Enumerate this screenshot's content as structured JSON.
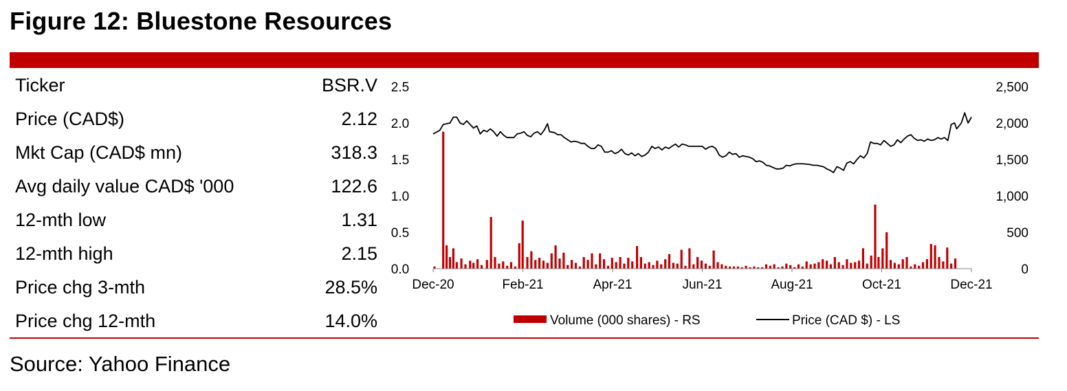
{
  "figure": {
    "title": "Figure 12: Bluestone Resources",
    "source": "Source: Yahoo Finance"
  },
  "stats": [
    {
      "label": "Ticker",
      "value": "BSR.V"
    },
    {
      "label": "Price (CAD$)",
      "value": "2.12"
    },
    {
      "label": "Mkt Cap (CAD$ mn)",
      "value": "318.3"
    },
    {
      "label": "Avg daily value CAD$ '000",
      "value": "122.6"
    },
    {
      "label": "12-mth low",
      "value": "1.31"
    },
    {
      "label": "12-mth high",
      "value": "2.15"
    },
    {
      "label": "Price chg 3-mth",
      "value": "28.5%"
    },
    {
      "label": "Price chg 12-mth",
      "value": "14.0%"
    }
  ],
  "colors": {
    "accent": "#c00000",
    "price_line": "#000000",
    "volume_bars": "#c00000"
  },
  "chart_data": {
    "type": "bar+line",
    "x_tick_labels": [
      "Dec-20",
      "Feb-21",
      "Apr-21",
      "Jun-21",
      "Aug-21",
      "Oct-21",
      "Dec-21"
    ],
    "left_axis": {
      "ticks": [
        "0.0",
        "0.5",
        "1.0",
        "1.5",
        "2.0",
        "2.5"
      ],
      "ylim": [
        0,
        2.5
      ]
    },
    "right_axis": {
      "ticks": [
        "0",
        "500",
        "1,000",
        "1,500",
        "2,000",
        "2,500"
      ],
      "ylim": [
        0,
        2500
      ]
    },
    "series": [
      {
        "name": "Volume (000 shares) - RS",
        "type": "bar",
        "axis": "right",
        "bars": [
          [
            0.2,
            30
          ],
          [
            1.5,
            1880
          ],
          [
            2.0,
            320
          ],
          [
            2.5,
            160
          ],
          [
            3.0,
            280
          ],
          [
            3.5,
            90
          ],
          [
            4.2,
            140
          ],
          [
            4.8,
            60
          ],
          [
            5.5,
            110
          ],
          [
            6.0,
            80
          ],
          [
            6.6,
            130
          ],
          [
            7.2,
            50
          ],
          [
            8.0,
            120
          ],
          [
            8.6,
            710
          ],
          [
            9.2,
            160
          ],
          [
            9.8,
            70
          ],
          [
            10.4,
            100
          ],
          [
            11.0,
            40
          ],
          [
            11.6,
            90
          ],
          [
            12.2,
            30
          ],
          [
            12.8,
            350
          ],
          [
            13.3,
            660
          ],
          [
            14.0,
            160
          ],
          [
            14.6,
            240
          ],
          [
            15.2,
            120
          ],
          [
            15.8,
            150
          ],
          [
            16.4,
            110
          ],
          [
            17.0,
            80
          ],
          [
            17.6,
            210
          ],
          [
            18.2,
            320
          ],
          [
            18.8,
            140
          ],
          [
            19.4,
            220
          ],
          [
            20.0,
            50
          ],
          [
            20.6,
            120
          ],
          [
            21.2,
            80
          ],
          [
            21.8,
            30
          ],
          [
            22.4,
            160
          ],
          [
            23.0,
            120
          ],
          [
            23.6,
            210
          ],
          [
            24.2,
            60
          ],
          [
            24.8,
            210
          ],
          [
            25.4,
            130
          ],
          [
            26.0,
            40
          ],
          [
            26.6,
            150
          ],
          [
            27.2,
            90
          ],
          [
            27.8,
            160
          ],
          [
            28.4,
            70
          ],
          [
            29.0,
            150
          ],
          [
            29.6,
            100
          ],
          [
            30.3,
            310
          ],
          [
            30.9,
            160
          ],
          [
            31.5,
            70
          ],
          [
            32.1,
            90
          ],
          [
            32.7,
            50
          ],
          [
            33.3,
            110
          ],
          [
            33.9,
            60
          ],
          [
            34.5,
            130
          ],
          [
            35.1,
            200
          ],
          [
            35.7,
            80
          ],
          [
            36.3,
            70
          ],
          [
            36.9,
            260
          ],
          [
            37.5,
            40
          ],
          [
            38.1,
            280
          ],
          [
            38.7,
            60
          ],
          [
            39.3,
            160
          ],
          [
            39.9,
            110
          ],
          [
            40.5,
            70
          ],
          [
            41.1,
            40
          ],
          [
            41.7,
            250
          ],
          [
            42.3,
            90
          ],
          [
            42.9,
            60
          ],
          [
            43.5,
            40
          ],
          [
            44.1,
            30
          ],
          [
            44.7,
            30
          ],
          [
            45.3,
            30
          ],
          [
            45.9,
            20
          ],
          [
            46.5,
            40
          ],
          [
            47.1,
            20
          ],
          [
            47.7,
            30
          ],
          [
            48.3,
            20
          ],
          [
            48.9,
            20
          ],
          [
            49.5,
            60
          ],
          [
            50.1,
            40
          ],
          [
            50.7,
            60
          ],
          [
            51.3,
            20
          ],
          [
            51.9,
            30
          ],
          [
            52.5,
            70
          ],
          [
            53.1,
            50
          ],
          [
            53.7,
            20
          ],
          [
            54.3,
            60
          ],
          [
            54.9,
            30
          ],
          [
            55.5,
            100
          ],
          [
            56.1,
            60
          ],
          [
            56.7,
            70
          ],
          [
            57.3,
            90
          ],
          [
            57.9,
            130
          ],
          [
            58.5,
            110
          ],
          [
            59.1,
            60
          ],
          [
            59.7,
            160
          ],
          [
            60.3,
            90
          ],
          [
            60.9,
            50
          ],
          [
            61.5,
            130
          ],
          [
            62.1,
            80
          ],
          [
            62.7,
            90
          ],
          [
            63.3,
            110
          ],
          [
            63.9,
            280
          ],
          [
            64.5,
            70
          ],
          [
            65.1,
            180
          ],
          [
            65.7,
            880
          ],
          [
            66.2,
            160
          ],
          [
            66.8,
            280
          ],
          [
            67.4,
            500
          ],
          [
            68.0,
            120
          ],
          [
            68.6,
            80
          ],
          [
            69.2,
            60
          ],
          [
            69.8,
            130
          ],
          [
            70.4,
            160
          ],
          [
            71.0,
            30
          ],
          [
            71.6,
            60
          ],
          [
            72.2,
            40
          ],
          [
            72.8,
            90
          ],
          [
            73.4,
            130
          ],
          [
            74.0,
            340
          ],
          [
            74.6,
            320
          ],
          [
            75.2,
            160
          ],
          [
            75.8,
            100
          ],
          [
            76.4,
            290
          ],
          [
            77.0,
            70
          ],
          [
            77.6,
            140
          ]
        ]
      },
      {
        "name": "Price (CAD $) - LS",
        "type": "line",
        "axis": "left",
        "points": [
          [
            0.0,
            1.85
          ],
          [
            1.0,
            1.9
          ],
          [
            1.5,
            1.98
          ],
          [
            2.5,
            2.0
          ],
          [
            3.0,
            2.08
          ],
          [
            3.5,
            2.08
          ],
          [
            4.0,
            2.0
          ],
          [
            4.5,
            1.98
          ],
          [
            5.0,
            2.03
          ],
          [
            5.5,
            1.98
          ],
          [
            6.0,
            1.93
          ],
          [
            6.5,
            1.96
          ],
          [
            7.0,
            1.85
          ],
          [
            7.5,
            1.9
          ],
          [
            8.0,
            1.88
          ],
          [
            8.5,
            1.92
          ],
          [
            9.0,
            1.88
          ],
          [
            9.5,
            1.82
          ],
          [
            10.0,
            1.88
          ],
          [
            10.5,
            1.83
          ],
          [
            11.0,
            1.8
          ],
          [
            12.0,
            1.8
          ],
          [
            12.5,
            1.85
          ],
          [
            13.0,
            1.86
          ],
          [
            13.5,
            1.88
          ],
          [
            14.0,
            1.83
          ],
          [
            14.5,
            1.81
          ],
          [
            15.0,
            1.86
          ],
          [
            15.5,
            1.88
          ],
          [
            16.0,
            1.84
          ],
          [
            16.5,
            1.9
          ],
          [
            17.0,
            1.99
          ],
          [
            17.3,
            1.88
          ],
          [
            18.0,
            1.87
          ],
          [
            18.5,
            1.84
          ],
          [
            19.0,
            1.84
          ],
          [
            19.5,
            1.8
          ],
          [
            20.0,
            1.77
          ],
          [
            20.5,
            1.74
          ],
          [
            21.0,
            1.75
          ],
          [
            21.5,
            1.74
          ],
          [
            22.0,
            1.72
          ],
          [
            22.5,
            1.72
          ],
          [
            23.0,
            1.68
          ],
          [
            23.5,
            1.65
          ],
          [
            24.0,
            1.65
          ],
          [
            24.5,
            1.7
          ],
          [
            25.0,
            1.68
          ],
          [
            25.5,
            1.6
          ],
          [
            26.0,
            1.6
          ],
          [
            26.5,
            1.62
          ],
          [
            27.0,
            1.58
          ],
          [
            27.5,
            1.6
          ],
          [
            28.0,
            1.64
          ],
          [
            28.5,
            1.58
          ],
          [
            29.0,
            1.56
          ],
          [
            29.5,
            1.59
          ],
          [
            30.0,
            1.55
          ],
          [
            30.5,
            1.58
          ],
          [
            31.0,
            1.54
          ],
          [
            31.5,
            1.56
          ],
          [
            32.0,
            1.6
          ],
          [
            32.5,
            1.68
          ],
          [
            33.0,
            1.65
          ],
          [
            33.5,
            1.67
          ],
          [
            34.0,
            1.63
          ],
          [
            34.5,
            1.67
          ],
          [
            35.0,
            1.65
          ],
          [
            35.5,
            1.68
          ],
          [
            36.0,
            1.71
          ],
          [
            36.5,
            1.67
          ],
          [
            37.0,
            1.71
          ],
          [
            37.5,
            1.7
          ],
          [
            38.0,
            1.68
          ],
          [
            38.5,
            1.68
          ],
          [
            39.0,
            1.68
          ],
          [
            40.0,
            1.68
          ],
          [
            40.5,
            1.64
          ],
          [
            41.0,
            1.67
          ],
          [
            41.5,
            1.68
          ],
          [
            42.0,
            1.65
          ],
          [
            42.5,
            1.56
          ],
          [
            43.0,
            1.53
          ],
          [
            43.5,
            1.55
          ],
          [
            44.0,
            1.6
          ],
          [
            44.5,
            1.57
          ],
          [
            45.0,
            1.58
          ],
          [
            45.5,
            1.53
          ],
          [
            46.0,
            1.55
          ],
          [
            46.5,
            1.54
          ],
          [
            47.0,
            1.53
          ],
          [
            47.5,
            1.51
          ],
          [
            48.0,
            1.47
          ],
          [
            48.5,
            1.48
          ],
          [
            49.0,
            1.46
          ],
          [
            49.5,
            1.42
          ],
          [
            50.0,
            1.41
          ],
          [
            50.5,
            1.39
          ],
          [
            51.0,
            1.37
          ],
          [
            51.5,
            1.37
          ],
          [
            52.0,
            1.38
          ],
          [
            52.5,
            1.42
          ],
          [
            53.0,
            1.41
          ],
          [
            53.5,
            1.43
          ],
          [
            54.0,
            1.44
          ],
          [
            55.0,
            1.44
          ],
          [
            56.0,
            1.43
          ],
          [
            56.5,
            1.42
          ],
          [
            57.0,
            1.42
          ],
          [
            58.0,
            1.4
          ],
          [
            58.5,
            1.37
          ],
          [
            59.0,
            1.35
          ],
          [
            59.5,
            1.32
          ],
          [
            60.0,
            1.4
          ],
          [
            60.5,
            1.38
          ],
          [
            61.0,
            1.35
          ],
          [
            61.5,
            1.45
          ],
          [
            62.0,
            1.47
          ],
          [
            62.5,
            1.44
          ],
          [
            63.0,
            1.5
          ],
          [
            63.5,
            1.55
          ],
          [
            64.0,
            1.52
          ],
          [
            64.5,
            1.58
          ],
          [
            65.0,
            1.74
          ],
          [
            65.5,
            1.72
          ],
          [
            66.0,
            1.72
          ],
          [
            66.5,
            1.7
          ],
          [
            67.0,
            1.76
          ],
          [
            67.5,
            1.72
          ],
          [
            68.0,
            1.68
          ],
          [
            68.5,
            1.7
          ],
          [
            69.0,
            1.77
          ],
          [
            69.5,
            1.73
          ],
          [
            70.0,
            1.78
          ],
          [
            70.5,
            1.82
          ],
          [
            71.0,
            1.84
          ],
          [
            71.5,
            1.79
          ],
          [
            72.0,
            1.76
          ],
          [
            72.5,
            1.77
          ],
          [
            73.0,
            1.75
          ],
          [
            73.5,
            1.78
          ],
          [
            74.0,
            1.76
          ],
          [
            74.5,
            1.77
          ],
          [
            75.0,
            1.8
          ],
          [
            75.5,
            1.78
          ],
          [
            76.0,
            1.8
          ],
          [
            76.5,
            1.76
          ],
          [
            77.0,
            1.98
          ],
          [
            77.5,
            2.0
          ],
          [
            77.8,
            1.92
          ],
          [
            78.5,
            2.0
          ],
          [
            79.0,
            2.14
          ],
          [
            79.5,
            2.0
          ],
          [
            80.0,
            2.08
          ]
        ]
      }
    ]
  }
}
